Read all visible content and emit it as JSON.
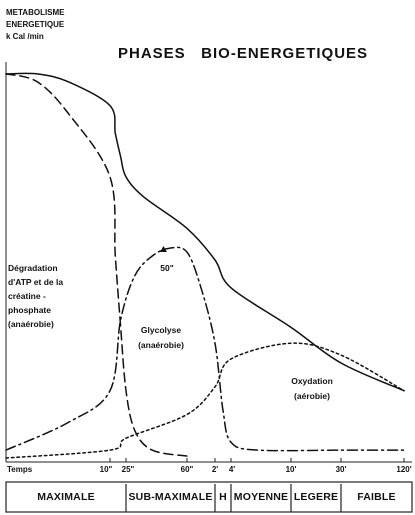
{
  "chart_data": {
    "type": "line",
    "title": "PHASES   BIO-ENERGETIQUES",
    "ylabel": [
      "METABOLISME",
      "ENERGETIQUE",
      "k Cal /min"
    ],
    "xlabel": "Temps",
    "x_ticks": [
      {
        "label": "10\"",
        "t": 10
      },
      {
        "label": "25\"",
        "t": 25
      },
      {
        "label": "60\"",
        "t": 60
      },
      {
        "label": "2'",
        "t": 120
      },
      {
        "label": "4'",
        "t": 240
      },
      {
        "label": "10'",
        "t": 600
      },
      {
        "label": "30'",
        "t": 1800
      },
      {
        "label": "120'",
        "t": 7200
      }
    ],
    "phases": [
      {
        "label": "MAXIMALE",
        "from": 0,
        "to": 25
      },
      {
        "label": "SUB-MAXIMALE",
        "from": 25,
        "to": 120
      },
      {
        "label": "H",
        "from": 120,
        "to": 240
      },
      {
        "label": "MOYENNE",
        "from": 240,
        "to": 600
      },
      {
        "label": "LEGERE",
        "from": 600,
        "to": 1800
      },
      {
        "label": "FAIBLE",
        "from": 1800,
        "to": 7200
      }
    ],
    "series": [
      {
        "id": "total",
        "style": "solid",
        "points": [
          [
            0,
            0.98
          ],
          [
            3,
            0.98
          ],
          [
            6,
            0.96
          ],
          [
            10,
            0.9
          ],
          [
            15,
            0.83
          ],
          [
            20,
            0.77
          ],
          [
            25,
            0.72
          ],
          [
            35,
            0.67
          ],
          [
            60,
            0.59
          ],
          [
            120,
            0.51
          ],
          [
            240,
            0.44
          ],
          [
            600,
            0.34
          ],
          [
            1800,
            0.25
          ],
          [
            7200,
            0.18
          ]
        ]
      },
      {
        "id": "atp",
        "style": "dash",
        "annotation": [
          "Dégradation",
          "d'ATP et de la",
          "créatine -",
          "phosphate",
          "(anaérobie)"
        ],
        "points": [
          [
            0,
            0.98
          ],
          [
            3,
            0.96
          ],
          [
            6,
            0.88
          ],
          [
            10,
            0.72
          ],
          [
            15,
            0.52
          ],
          [
            20,
            0.34
          ],
          [
            25,
            0.18
          ],
          [
            30,
            0.08
          ],
          [
            40,
            0.03
          ],
          [
            60,
            0.015
          ]
        ]
      },
      {
        "id": "glycolyse",
        "style": "dashdot",
        "annotation": [
          "Glycolyse",
          "(anaérobie)"
        ],
        "peak_label": "50\"",
        "points": [
          [
            0,
            0.03
          ],
          [
            6,
            0.1
          ],
          [
            10,
            0.18
          ],
          [
            20,
            0.36
          ],
          [
            30,
            0.47
          ],
          [
            40,
            0.52
          ],
          [
            50,
            0.54
          ],
          [
            60,
            0.53
          ],
          [
            90,
            0.44
          ],
          [
            120,
            0.3
          ],
          [
            180,
            0.13
          ],
          [
            240,
            0.05
          ],
          [
            400,
            0.03
          ],
          [
            1800,
            0.03
          ],
          [
            7200,
            0.03
          ]
        ]
      },
      {
        "id": "oxydation",
        "style": "dot",
        "annotation": [
          "Oxydation",
          "(aérobie)"
        ],
        "points": [
          [
            0,
            0.01
          ],
          [
            10,
            0.03
          ],
          [
            25,
            0.06
          ],
          [
            60,
            0.12
          ],
          [
            120,
            0.19
          ],
          [
            240,
            0.26
          ],
          [
            600,
            0.3
          ],
          [
            1800,
            0.27
          ],
          [
            7200,
            0.18
          ]
        ]
      }
    ]
  }
}
